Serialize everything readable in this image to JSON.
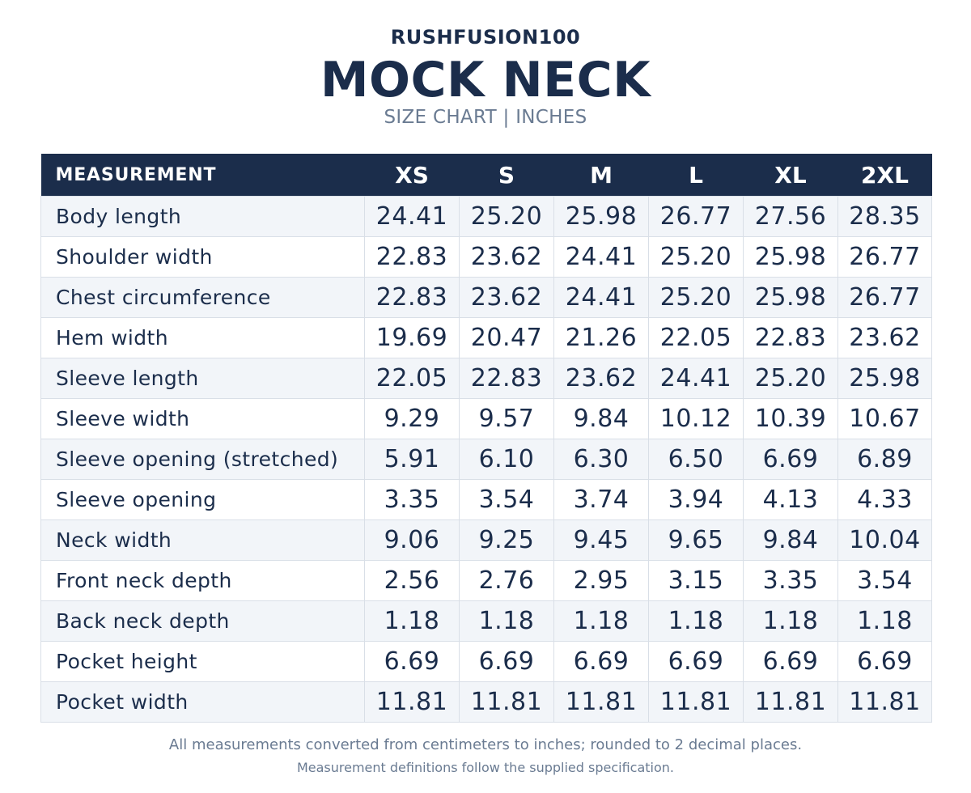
{
  "header": {
    "brand": "RUSHFUSION100",
    "title": "MOCK NECK",
    "subtitle": "SIZE CHART  |  INCHES"
  },
  "table": {
    "measurement_header": "MEASUREMENT",
    "sizes": [
      "XS",
      "S",
      "M",
      "L",
      "XL",
      "2XL"
    ],
    "rows": [
      {
        "label": "Body length",
        "values": [
          "24.41",
          "25.20",
          "25.98",
          "26.77",
          "27.56",
          "28.35"
        ]
      },
      {
        "label": "Shoulder width",
        "values": [
          "22.83",
          "23.62",
          "24.41",
          "25.20",
          "25.98",
          "26.77"
        ]
      },
      {
        "label": "Chest circumference",
        "values": [
          "22.83",
          "23.62",
          "24.41",
          "25.20",
          "25.98",
          "26.77"
        ]
      },
      {
        "label": "Hem width",
        "values": [
          "19.69",
          "20.47",
          "21.26",
          "22.05",
          "22.83",
          "23.62"
        ]
      },
      {
        "label": "Sleeve length",
        "values": [
          "22.05",
          "22.83",
          "23.62",
          "24.41",
          "25.20",
          "25.98"
        ]
      },
      {
        "label": "Sleeve width",
        "values": [
          "9.29",
          "9.57",
          "9.84",
          "10.12",
          "10.39",
          "10.67"
        ]
      },
      {
        "label": "Sleeve opening (stretched)",
        "values": [
          "5.91",
          "6.10",
          "6.30",
          "6.50",
          "6.69",
          "6.89"
        ]
      },
      {
        "label": "Sleeve opening",
        "values": [
          "3.35",
          "3.54",
          "3.74",
          "3.94",
          "4.13",
          "4.33"
        ]
      },
      {
        "label": "Neck width",
        "values": [
          "9.06",
          "9.25",
          "9.45",
          "9.65",
          "9.84",
          "10.04"
        ]
      },
      {
        "label": "Front neck depth",
        "values": [
          "2.56",
          "2.76",
          "2.95",
          "3.15",
          "3.35",
          "3.54"
        ]
      },
      {
        "label": "Back neck depth",
        "values": [
          "1.18",
          "1.18",
          "1.18",
          "1.18",
          "1.18",
          "1.18"
        ]
      },
      {
        "label": "Pocket height",
        "values": [
          "6.69",
          "6.69",
          "6.69",
          "6.69",
          "6.69",
          "6.69"
        ]
      },
      {
        "label": "Pocket width",
        "values": [
          "11.81",
          "11.81",
          "11.81",
          "11.81",
          "11.81",
          "11.81"
        ]
      }
    ]
  },
  "footer": {
    "note1": "All measurements converted from centimeters to inches; rounded to 2 decimal places.",
    "note2": "Measurement definitions follow the supplied specification."
  },
  "colors": {
    "navy": "#1b2d4b",
    "muted_text": "#6a7b92",
    "row_alt": "#f2f5f9",
    "border": "#d9dfe7"
  }
}
